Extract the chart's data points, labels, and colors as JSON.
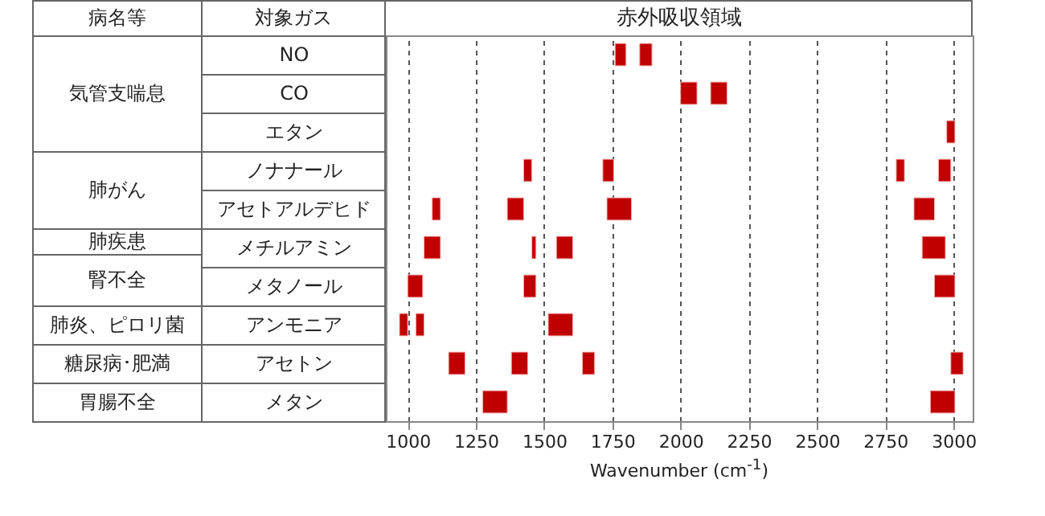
{
  "chart_data": {
    "type": "bar",
    "orientation": "horizontal",
    "title": "赤外吸収領域",
    "ylabel": "対象ガス",
    "xlabel": "Wavenumber (cm$^{-1}$)",
    "categories": [
      "NO",
      "CO",
      "エタン",
      "ノナナール",
      "アセトアルデヒド",
      "メチルアミン",
      "メタノール",
      "アンモニア",
      "アセトン",
      "メタン"
    ],
    "series": [
      {
        "color": "#c00000",
        "base": [
          1760,
          2000,
          2975,
          1425,
          1090,
          1060,
          1000,
          970,
          1150,
          1275
        ],
        "values": [
          40,
          60,
          30,
          30,
          30,
          60,
          55,
          30,
          60,
          90
        ]
      },
      {
        "color": "#c00000",
        "base": [
          1850,
          2110,
          null,
          1715,
          1365,
          1455,
          1425,
          1030,
          1380,
          2915
        ],
        "values": [
          45,
          60,
          null,
          40,
          60,
          15,
          45,
          30,
          60,
          90
        ]
      },
      {
        "color": "#c00000",
        "base": [
          null,
          null,
          null,
          2790,
          1730,
          1545,
          2930,
          1515,
          1640,
          null
        ],
        "values": [
          null,
          null,
          null,
          30,
          90,
          60,
          75,
          90,
          45,
          null
        ]
      },
      {
        "color": "#c00000",
        "base": [
          null,
          null,
          null,
          2945,
          2855,
          2885,
          null,
          null,
          2990,
          null
        ],
        "values": [
          null,
          null,
          null,
          45,
          75,
          85,
          null,
          null,
          45,
          null
        ]
      }
    ],
    "xlim": [
      920,
      3070
    ],
    "xticks": [
      1000,
      1250,
      1500,
      1750,
      2000,
      2250,
      2500,
      2750,
      3000
    ],
    "grid": "x",
    "legend": false,
    "annotations": [
      "病名等",
      "気管支喘息",
      "肺がん",
      "肺疾患",
      "腎不全",
      "肺炎、ピロリ菌",
      "糖尿病･肥満",
      "胃腸不全"
    ]
  }
}
